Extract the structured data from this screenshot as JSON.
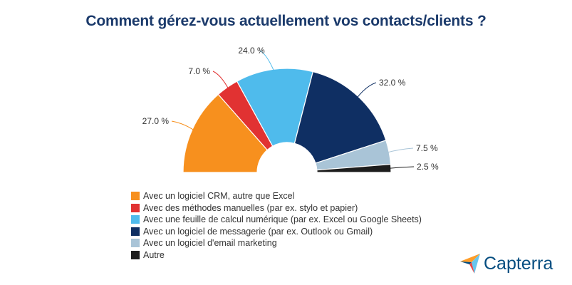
{
  "chart_data": {
    "type": "pie",
    "subtype": "semi-donut",
    "title": "Comment gérez-vous actuellement vos contacts/clients ?",
    "series": [
      {
        "name": "Avec un logiciel CRM, autre que Excel",
        "value": 27.0,
        "label": "27.0 %",
        "color": "#f7901e"
      },
      {
        "name": "Avec des méthodes manuelles (par ex. stylo et papier)",
        "value": 7.0,
        "label": "7.0 %",
        "color": "#e13232"
      },
      {
        "name": "Avec une feuille de calcul numérique (par ex. Excel ou Google Sheets)",
        "value": 24.0,
        "label": "24.0 %",
        "color": "#4fbbec"
      },
      {
        "name": "Avec un logiciel de messagerie (par ex. Outlook ou Gmail)",
        "value": 32.0,
        "label": "32.0 %",
        "color": "#0f2f63"
      },
      {
        "name": "Avec un logiciel d'email marketing",
        "value": 7.5,
        "label": "7.5 %",
        "color": "#a9c4d7"
      },
      {
        "name": "Autre",
        "value": 2.5,
        "label": "2.5 %",
        "color": "#1d1d1d"
      }
    ],
    "legend_position": "bottom-left"
  },
  "brand": {
    "name": "Capterra",
    "icon": "capterra-logo-icon"
  }
}
